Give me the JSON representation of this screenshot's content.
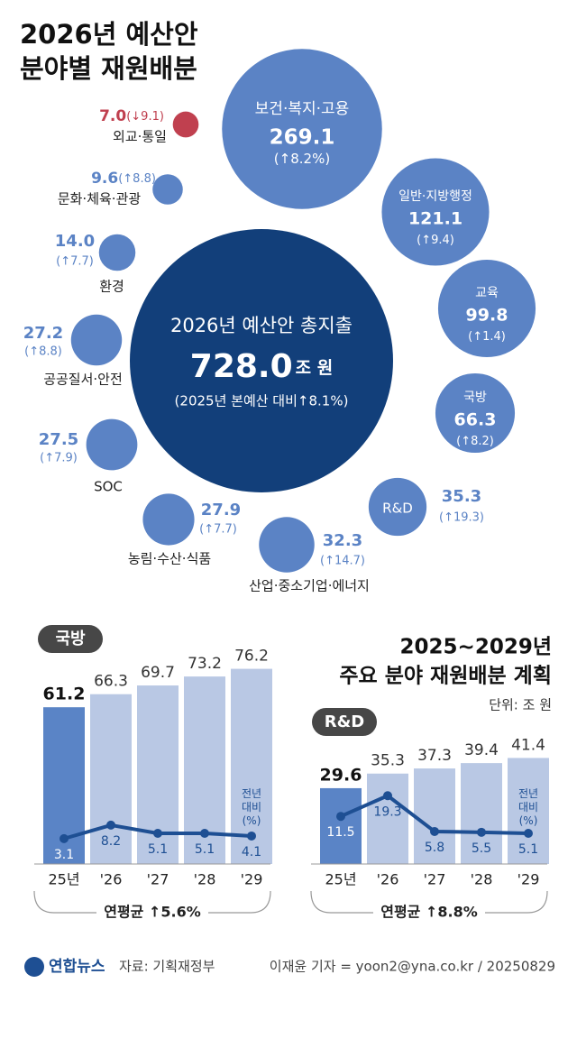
{
  "chart_data": [
    {
      "type": "bubble",
      "title": [
        "2026년 예산안",
        "분야별 재원배분"
      ],
      "center": {
        "label": "2026년 예산안 총지출",
        "value": 728.0,
        "value_label": "728.0",
        "unit": "조 원",
        "note": "(2025년 본예산 대비↑8.1%)",
        "color": "#123f7a"
      },
      "categories": [
        "보건·복지·고용",
        "일반·지방행정",
        "교육",
        "국방",
        "R&D",
        "산업·중소기업·에너지",
        "농림·수산·식품",
        "SOC",
        "공공질서·안전",
        "환경",
        "문화·체육·관광",
        "외교·통일"
      ],
      "values": [
        269.1,
        121.1,
        99.8,
        66.3,
        35.3,
        32.3,
        27.9,
        27.5,
        27.2,
        14.0,
        9.6,
        7.0
      ],
      "value_labels": [
        "269.1",
        "121.1",
        "99.8",
        "66.3",
        "35.3",
        "32.3",
        "27.9",
        "27.5",
        "27.2",
        "14.0",
        "9.6",
        "7.0"
      ],
      "change_labels": [
        "(↑8.2%)",
        "(↑9.4)",
        "(↑1.4)",
        "(↑8.2)",
        "(↑19.3)",
        "(↑14.7)",
        "(↑7.7)",
        "(↑7.9)",
        "(↑8.8)",
        "(↑7.7)",
        "(↑8.8)",
        "(↓9.1)"
      ],
      "colors": [
        "#5b83c5",
        "#5b83c5",
        "#5b83c5",
        "#5b83c5",
        "#5b83c5",
        "#5b83c5",
        "#5b83c5",
        "#5b83c5",
        "#5b83c5",
        "#5b83c5",
        "#5b83c5",
        "#c0404f"
      ]
    },
    {
      "type": "bar",
      "title": "국방",
      "categories": [
        "25년",
        "'26",
        "'27",
        "'28",
        "'29"
      ],
      "series": [
        {
          "type": "bar",
          "values": [
            61.2,
            66.3,
            69.7,
            73.2,
            76.2
          ],
          "colors": [
            "#5a84c6",
            "#b9c8e4",
            "#b9c8e4",
            "#b9c8e4",
            "#b9c8e4"
          ]
        },
        {
          "type": "line",
          "name": "전년 대비 (%)",
          "axis": "y2",
          "color": "#1e4f93",
          "values": [
            3.1,
            8.2,
            5.1,
            5.1,
            4.1
          ]
        }
      ],
      "note": "연평균 ↑5.6%"
    },
    {
      "type": "bar",
      "title": "R&D",
      "categories": [
        "25년",
        "'26",
        "'27",
        "'28",
        "'29"
      ],
      "series": [
        {
          "type": "bar",
          "values": [
            29.6,
            35.3,
            37.3,
            39.4,
            41.4
          ],
          "colors": [
            "#5a84c6",
            "#b9c8e4",
            "#b9c8e4",
            "#b9c8e4",
            "#b9c8e4"
          ]
        },
        {
          "type": "line",
          "name": "전년 대비 (%)",
          "axis": "y2",
          "color": "#1e4f93",
          "values": [
            11.5,
            19.3,
            5.8,
            5.5,
            5.1
          ]
        }
      ],
      "note": "연평균 ↑8.8%"
    }
  ],
  "section_title": [
    "2025~2029년",
    "주요 분야 재원배분 계획"
  ],
  "unit": "단위: 조 원",
  "footer": {
    "logo": "연합뉴스",
    "source": "자료: 기획재정부",
    "credit": "이재윤 기자 = yoon2@yna.co.kr / 20250829"
  }
}
